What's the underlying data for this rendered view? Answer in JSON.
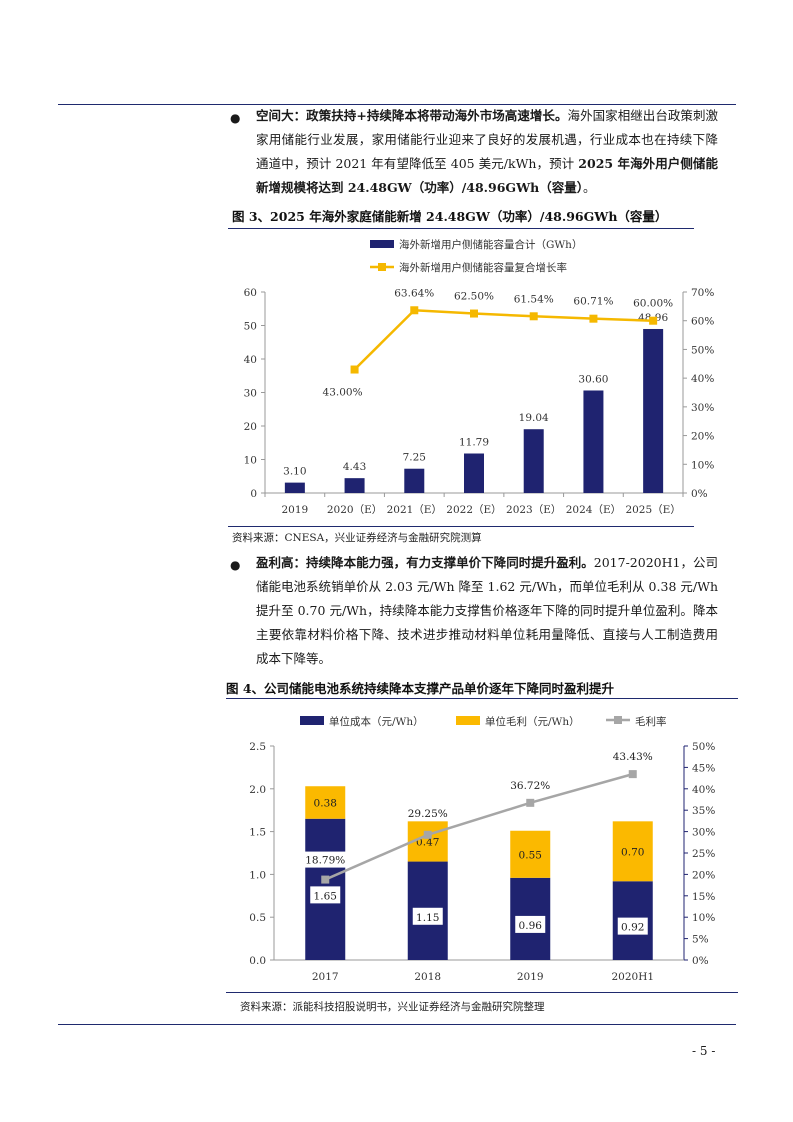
{
  "section1": {
    "bullet": "●",
    "lead": "空间大：政策扶持+持续降本将带动海外市场高速增长。",
    "text_a": "海外国家相继出台政策刺激家用储能行业发展，家用储能行业迎来了良好的发展机遇，行业成本也在持续下降通道中，预计 2021 年有望降低至 405 美元/kWh，预计 ",
    "bold_tail": "2025 年海外用户侧储能新增规模将达到 24.48GW（功率）/48.96GWh（容量）",
    "end": "。"
  },
  "figure3": {
    "title": "图 3、2025 年海外家庭储能新增 24.48GW（功率）/48.96GWh（容量）",
    "source": "资料来源：CNESA，兴业证券经济与金融研究院测算"
  },
  "section2": {
    "bullet": "●",
    "lead": "盈利高：持续降本能力强，有力支撑单价下降同时提升盈利。",
    "text": "2017-2020H1，公司储能电池系统销单价从 2.03 元/Wh 降至 1.62 元/Wh，而单位毛利从 0.38 元/Wh 提升至 0.70 元/Wh，持续降本能力支撑售价格逐年下降的同时提升单位盈利。降本主要依靠材料价格下降、技术进步推动材料单位耗用量降低、直接与人工制造费用成本下降等。"
  },
  "figure4": {
    "title": "图 4、公司储能电池系统持续降本支撑产品单价逐年下降同时盈利提升",
    "source": "资料来源：派能科技招股说明书，兴业证券经济与金融研究院整理"
  },
  "page_number": "- 5 -",
  "colors": {
    "navy": "#1f2370",
    "gold": "#fbb900",
    "orange_line": "#f5b800",
    "gray": "#a6a6a6"
  },
  "chart_data": [
    {
      "type": "bar",
      "categories": [
        "2019",
        "2020（E）",
        "2021（E）",
        "2022（E）",
        "2023（E）",
        "2024（E）",
        "2025（E）"
      ],
      "series": [
        {
          "name": "海外新增用户侧储能容量合计（GWh）",
          "type": "bar",
          "axis": "left",
          "values": [
            3.1,
            4.43,
            7.25,
            11.79,
            19.04,
            30.6,
            48.96
          ],
          "labels": [
            "3.10",
            "4.43",
            "7.25",
            "11.79",
            "19.04",
            "30.60",
            "48.96"
          ]
        },
        {
          "name": "海外新增用户侧储能容量复合增长率",
          "type": "line",
          "axis": "right",
          "values": [
            null,
            43.0,
            63.64,
            62.5,
            61.54,
            60.71,
            60.0
          ],
          "labels": [
            "",
            "43.00%",
            "63.64%",
            "62.50%",
            "61.54%",
            "60.71%",
            "60.00%"
          ]
        }
      ],
      "ylim": [
        0,
        60
      ],
      "yticks": [
        "0",
        "10",
        "20",
        "30",
        "40",
        "50",
        "60"
      ],
      "y2lim": [
        0,
        70
      ],
      "y2ticks": [
        "0%",
        "10%",
        "20%",
        "30%",
        "40%",
        "50%",
        "60%",
        "70%"
      ],
      "legend": "top",
      "grid": false
    },
    {
      "type": "bar",
      "stacked": true,
      "categories": [
        "2017",
        "2018",
        "2019",
        "2020H1"
      ],
      "series": [
        {
          "name": "单位成本（元/Wh）",
          "type": "bar",
          "axis": "left",
          "values": [
            1.65,
            1.15,
            0.96,
            0.92
          ],
          "labels": [
            "1.65",
            "1.15",
            "0.96",
            "0.92"
          ]
        },
        {
          "name": "单位毛利（元/Wh）",
          "type": "bar",
          "axis": "left",
          "values": [
            0.38,
            0.47,
            0.55,
            0.7
          ],
          "labels": [
            "0.38",
            "0.47",
            "0.55",
            "0.70"
          ]
        },
        {
          "name": "毛利率",
          "type": "line",
          "axis": "right",
          "values": [
            18.79,
            29.25,
            36.72,
            43.43
          ],
          "labels": [
            "18.79%",
            "29.25%",
            "36.72%",
            "43.43%"
          ]
        }
      ],
      "ylim": [
        0,
        2.5
      ],
      "yticks": [
        "0.0",
        "0.5",
        "1.0",
        "1.5",
        "2.0",
        "2.5"
      ],
      "y2lim": [
        0,
        50
      ],
      "y2ticks": [
        "0%",
        "5%",
        "10%",
        "15%",
        "20%",
        "25%",
        "30%",
        "35%",
        "40%",
        "45%",
        "50%"
      ],
      "legend": "top",
      "grid": false
    }
  ]
}
